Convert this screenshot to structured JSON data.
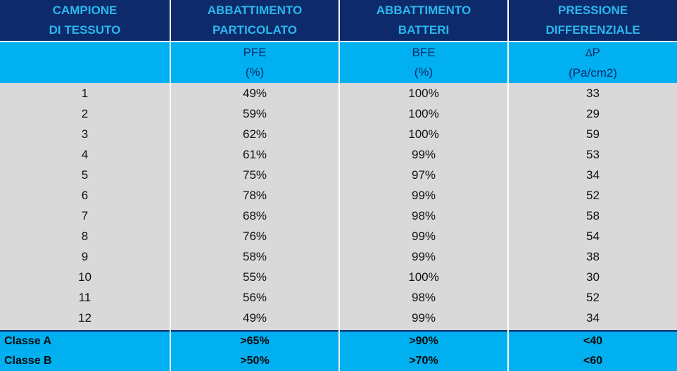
{
  "headers": [
    {
      "line1": "CAMPIONE",
      "line2": "DI TESSUTO"
    },
    {
      "line1": "ABBATTIMENTO",
      "line2": "PARTICOLATO"
    },
    {
      "line1": "ABBATTIMENTO",
      "line2": "BATTERI"
    },
    {
      "line1": "PRESSIONE",
      "line2": "DIFFERENZIALE"
    }
  ],
  "units": [
    {
      "line1": "",
      "line2": ""
    },
    {
      "line1": "PFE",
      "line2": "(%)"
    },
    {
      "line1": "BFE",
      "line2": "(%)"
    },
    {
      "symbol": "∆",
      "line1": "P",
      "line2": "(Pa/cm2)"
    }
  ],
  "rows": [
    [
      "1",
      "49%",
      "100%",
      "33"
    ],
    [
      "2",
      "59%",
      "100%",
      "29"
    ],
    [
      "3",
      "62%",
      "100%",
      "59"
    ],
    [
      "4",
      "61%",
      "99%",
      "53"
    ],
    [
      "5",
      "75%",
      "97%",
      "34"
    ],
    [
      "6",
      "78%",
      "99%",
      "52"
    ],
    [
      "7",
      "68%",
      "98%",
      "58"
    ],
    [
      "8",
      "76%",
      "99%",
      "54"
    ],
    [
      "9",
      "58%",
      "99%",
      "38"
    ],
    [
      "10",
      "55%",
      "100%",
      "30"
    ],
    [
      "11",
      "56%",
      "98%",
      "52"
    ],
    [
      "12",
      "49%",
      "99%",
      "34"
    ]
  ],
  "classes": [
    [
      "Classe A",
      ">65%",
      ">90%",
      "<40"
    ],
    [
      "Classe B",
      ">50%",
      ">70%",
      "<60"
    ]
  ],
  "colors": {
    "header_bg": "#0d2a6a",
    "header_text": "#2bb7ee",
    "accent_bg": "#00b0f0",
    "body_bg": "#d9d9d9"
  }
}
